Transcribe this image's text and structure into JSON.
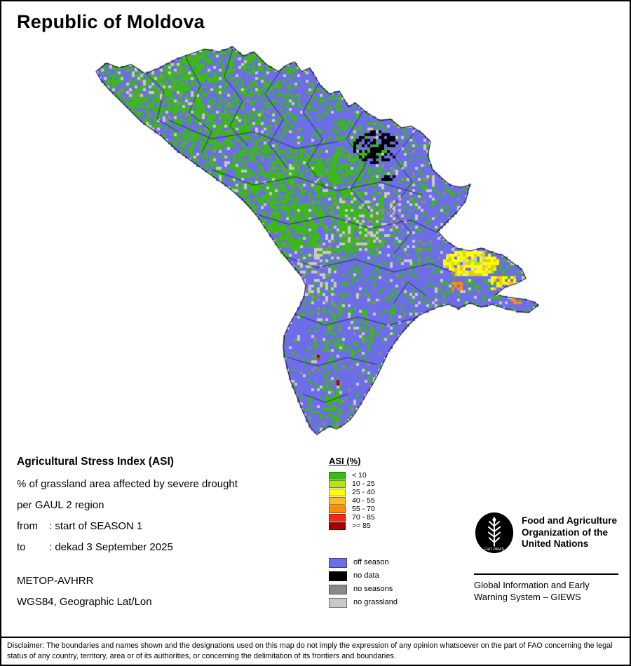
{
  "title": "Republic of Moldova",
  "legend": {
    "title": "ASI (%)",
    "asi_classes": [
      {
        "label": "< 10",
        "color": "#3cb818"
      },
      {
        "label": "10 - 25",
        "color": "#b2e414"
      },
      {
        "label": "25 - 40",
        "color": "#ffff00"
      },
      {
        "label": "40 - 55",
        "color": "#ffbe19"
      },
      {
        "label": "55 - 70",
        "color": "#ff8a0e"
      },
      {
        "label": "70 - 85",
        "color": "#ef2917"
      },
      {
        "label": ">= 85",
        "color": "#a80000"
      }
    ],
    "other_classes": [
      {
        "label": "off season",
        "color": "#6d6de8"
      },
      {
        "label": "no data",
        "color": "#000000"
      },
      {
        "label": "no seasons",
        "color": "#8a8a8a"
      },
      {
        "label": "no grassland",
        "color": "#c9c9c9"
      }
    ]
  },
  "info": {
    "heading": "Agricultural Stress Index (ASI)",
    "line1": "% of grassland area affected by severe drought",
    "line2": "per GAUL 2 region",
    "from_label": "from",
    "from_value": ": start of SEASON 1",
    "to_label": "to",
    "to_value": ": dekad 3 September 2025",
    "sensor": "METOP-AVHRR",
    "projection": "WGS84, Geographic Lat/Lon"
  },
  "fao": {
    "logo_motto": "FIAT PANIS",
    "org_lines": [
      "Food and Agriculture",
      "Organization of the",
      "United Nations"
    ],
    "giews_lines": [
      "Global Information and Early",
      "Warning System – GIEWS"
    ]
  },
  "disclaimer": "Disclaimer: The boundaries and names shown and the designations used on this map do not imply the expression of any opinion whatsoever on the part of FAO concerning the legal status of any country, territory, area or of its authorities, or concerning the delimitation of its frontiers and boundaries."
}
